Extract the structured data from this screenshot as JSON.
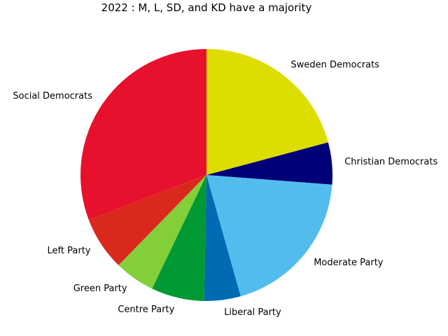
{
  "chart_data": {
    "type": "pie",
    "title": "2022 : M, L, SD, and KD have a majority",
    "start_angle": "top",
    "direction": "clockwise",
    "slices": [
      {
        "label": "Sweden Democrats",
        "value": 20.5,
        "color": "#DDDD00"
      },
      {
        "label": "Christian Democrats",
        "value": 5.3,
        "color": "#000077"
      },
      {
        "label": "Moderate Party",
        "value": 19.1,
        "color": "#52BDEC"
      },
      {
        "label": "Liberal Party",
        "value": 4.6,
        "color": "#006AB3"
      },
      {
        "label": "Centre Party",
        "value": 6.7,
        "color": "#009933"
      },
      {
        "label": "Green Party",
        "value": 5.1,
        "color": "#83CF39"
      },
      {
        "label": "Left Party",
        "value": 6.8,
        "color": "#DA291C"
      },
      {
        "label": "Social Democrats",
        "value": 30.3,
        "color": "#E8112D"
      }
    ]
  }
}
